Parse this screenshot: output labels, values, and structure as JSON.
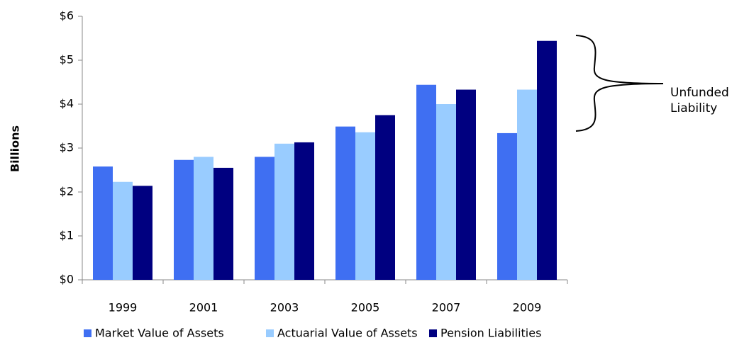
{
  "chart_data": {
    "type": "bar",
    "y_label": "Billions",
    "annotation": "Unfunded Liability",
    "categories": [
      "1999",
      "2001",
      "2003",
      "2005",
      "2007",
      "2009"
    ],
    "series": [
      {
        "name": "Market Value of Assets",
        "color": "#3f6ff2",
        "values": [
          2.58,
          2.73,
          2.8,
          3.49,
          4.44,
          3.34
        ]
      },
      {
        "name": "Actuarial Value of Assets",
        "color": "#99ccff",
        "values": [
          2.23,
          2.8,
          3.1,
          3.36,
          4.0,
          4.33
        ]
      },
      {
        "name": "Pension Liabilities",
        "color": "#000080",
        "values": [
          2.14,
          2.55,
          3.13,
          3.75,
          4.33,
          5.44
        ]
      }
    ],
    "ylim": [
      0,
      6
    ],
    "yticks": [
      {
        "value": 0,
        "label": "$0"
      },
      {
        "value": 1,
        "label": "$1"
      },
      {
        "value": 2,
        "label": "$2"
      },
      {
        "value": 3,
        "label": "$3"
      },
      {
        "value": 4,
        "label": "$4"
      },
      {
        "value": 5,
        "label": "$5"
      },
      {
        "value": 6,
        "label": "$6"
      }
    ],
    "grid": false,
    "legend": "bottom"
  }
}
